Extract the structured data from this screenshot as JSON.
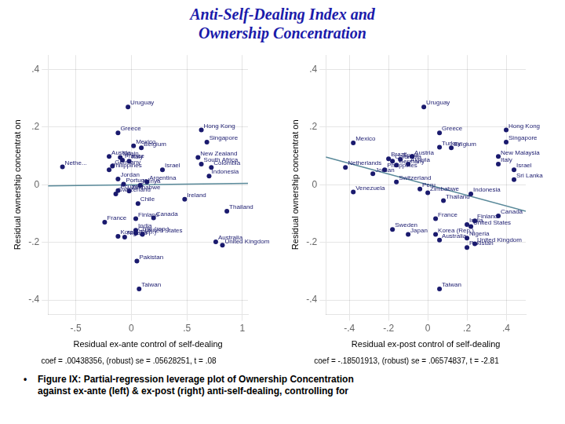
{
  "title": [
    "Anti-Self-Dealing Index and",
    "Ownership Concentration"
  ],
  "annotations": [
    "•",
    "Figure IX:  Partial-regression leverage plot of Ownership Concentration\nagainst ex-ante (left) & ex-post (right) anti-self-dealing, controlling for"
  ],
  "chart_data": [
    {
      "type": "scatter",
      "x_label": "Residual ex-ante control of self-dealing",
      "y_label": "Residual ownership concentrat on",
      "annotations": [
        "coef = .00438356, (robust) se = .05628251, t = .08"
      ],
      "xlim": [
        -0.75,
        1.05
      ],
      "ylim": [
        -0.45,
        0.45
      ],
      "xticks": [
        {
          "value": -0.5,
          "label": "-.5"
        },
        0,
        {
          "value": 0.5,
          "label": ".5"
        },
        1
      ],
      "yticks": [
        {
          "value": -0.4,
          "label": "-.4"
        },
        {
          "value": -0.2,
          "label": "-.2"
        },
        0,
        {
          "value": 0.2,
          "label": ".2"
        },
        {
          "value": 0.4,
          "label": ".4"
        }
      ],
      "grid": true,
      "series": [
        {
          "type": "scatter",
          "color": "#1a1a6e",
          "x": [
            -0.03,
            -0.12,
            0.02,
            0.09,
            0.63,
            0.68,
            -0.2,
            -0.1,
            -0.08,
            -0.02,
            -0.17,
            -0.62,
            -0.2,
            0.6,
            0.63,
            0.72,
            0.28,
            0.7,
            -0.12,
            0.14,
            -0.07,
            0.08,
            -0.12,
            -0.02,
            -0.14,
            0.48,
            0.06,
            0.86,
            0.04,
            0.2,
            -0.24,
            0.04,
            0.04,
            0.1,
            -0.12,
            -0.06,
            0.76,
            0.82,
            0.05,
            0.07
          ],
          "values": [
            0.27,
            0.18,
            0.135,
            0.128,
            0.19,
            0.148,
            0.098,
            0.095,
            0.085,
            0.082,
            0.065,
            0.062,
            0.052,
            0.095,
            0.072,
            0.06,
            0.052,
            0.03,
            0.02,
            0.01,
            0.002,
            -0.002,
            -0.02,
            -0.022,
            -0.032,
            -0.05,
            -0.065,
            -0.092,
            -0.118,
            -0.115,
            -0.13,
            -0.158,
            -0.168,
            -0.172,
            -0.179,
            -0.182,
            -0.198,
            -0.21,
            -0.265,
            -0.362
          ],
          "labels": [
            "Uruguay",
            "Greece",
            "Mexico",
            "Belgium",
            "Hong Kong",
            "Singapore",
            "Austria",
            "Spain",
            "France",
            "Italy",
            "Germany",
            "Nethe...",
            "Philippines",
            "New Zealand",
            "South Africa",
            "Colombia",
            "Israel",
            "Indonesia",
            "Jordan",
            "Argentina",
            "Portugal",
            "Kenya",
            "Ecuador",
            "Zimbabwe",
            "Switzerland",
            "Ireland",
            "Chile",
            "Thailand",
            "Finland",
            "Canada",
            "France",
            "India",
            "Chile (rep.)",
            "United States",
            "Korea (Rep.)",
            "Nigeria",
            "Australia",
            "United Kingdom",
            "Pakistan",
            "Taiwan"
          ]
        },
        {
          "type": "line",
          "color": "#5a8a9a",
          "x": [
            -0.75,
            1.05
          ],
          "values": [
            -0.004,
            0.005
          ]
        }
      ]
    },
    {
      "type": "scatter",
      "x_label": "Residual ex-post control of self-dealing",
      "y_label": "Residual ownership concentrat on",
      "annotations": [
        "coef = -.18501913, (robust) se = .06574837, t = -2.81"
      ],
      "xlim": [
        -0.52,
        0.5
      ],
      "ylim": [
        -0.45,
        0.45
      ],
      "xticks": [
        {
          "value": -0.4,
          "label": "-.4"
        },
        {
          "value": -0.2,
          "label": "-.2"
        },
        0,
        {
          "value": 0.2,
          "label": ".2"
        },
        {
          "value": 0.4,
          "label": ".4"
        }
      ],
      "yticks": [
        {
          "value": -0.4,
          "label": "-.4"
        },
        {
          "value": -0.2,
          "label": "-.2"
        },
        0,
        {
          "value": 0.2,
          "label": ".2"
        },
        {
          "value": 0.4,
          "label": ".4"
        }
      ],
      "grid": true,
      "series": [
        {
          "type": "scatter",
          "color": "#1a1a6e",
          "x": [
            -0.02,
            0.06,
            -0.38,
            0.06,
            0.12,
            0.4,
            0.4,
            -0.08,
            -0.2,
            -0.14,
            -0.18,
            -0.1,
            -0.42,
            -0.22,
            -0.16,
            0.36,
            0.36,
            0.44,
            -0.28,
            -0.38,
            -0.04,
            -0.16,
            0.0,
            0.08,
            0.44,
            0.22,
            0.24,
            0.04,
            0.36,
            -0.18,
            0.2,
            0.22,
            -0.1,
            0.04,
            0.2,
            0.06,
            0.24,
            0.2,
            0.06
          ],
          "values": [
            0.27,
            0.18,
            0.145,
            0.13,
            0.128,
            0.19,
            0.148,
            0.098,
            0.09,
            0.088,
            0.082,
            0.072,
            0.06,
            0.052,
            0.068,
            0.098,
            0.072,
            0.052,
            0.038,
            -0.025,
            -0.015,
            0.01,
            -0.028,
            -0.055,
            0.018,
            -0.032,
            -0.125,
            -0.118,
            -0.108,
            -0.155,
            -0.138,
            -0.145,
            -0.172,
            -0.172,
            -0.185,
            -0.192,
            -0.205,
            -0.218,
            -0.362
          ],
          "labels": [
            "Uruguay",
            "Greece",
            "Mexico",
            "Turkey",
            "Belgium",
            "Hong Kong",
            "Singapore",
            "Austria",
            "Brazil",
            "Spain",
            "Colombia",
            "Algeria",
            "Netherlands",
            "Philippines",
            "Germany",
            "New Malaysia",
            "Italy",
            "Israel",
            "Jordan",
            "Venezuela",
            "Peru",
            "Switzerland",
            "Zimbabwe",
            "Thailand",
            "Sri Lanka",
            "Indonesia",
            "Finland",
            "France",
            "Canada",
            "Sweden",
            "India",
            "United States",
            "Japan",
            "Korea (Rep.)",
            "Nigeria",
            "Australia",
            "United Kingdom",
            "Pakistan",
            "Taiwan"
          ]
        },
        {
          "type": "line",
          "color": "#5a8a9a",
          "x": [
            -0.52,
            0.5
          ],
          "values": [
            0.096,
            -0.092
          ]
        }
      ]
    }
  ]
}
